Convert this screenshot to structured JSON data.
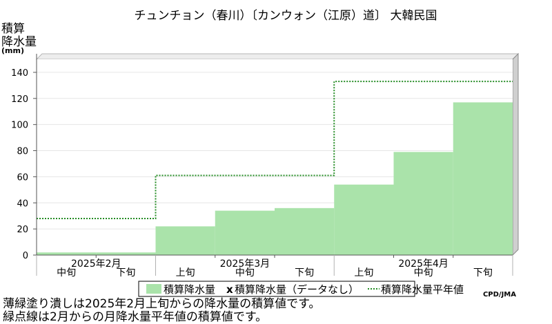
{
  "chart_data": {
    "type": "bar",
    "title": "チュンチョン（春川）〔カンウォン（江原）道〕 大韓民国",
    "ylabel_lines": [
      "積算",
      "降水量"
    ],
    "unit": "(mm)",
    "ylim": [
      0,
      150
    ],
    "yticks": [
      0,
      20,
      40,
      60,
      80,
      100,
      120,
      140
    ],
    "period_labels": [
      "中旬",
      "下旬",
      "上旬",
      "中旬",
      "下旬",
      "上旬",
      "中旬",
      "下旬"
    ],
    "month_labels": [
      {
        "label": "2025年2月",
        "span": [
          0,
          2
        ]
      },
      {
        "label": "2025年3月",
        "span": [
          2,
          5
        ]
      },
      {
        "label": "2025年4月",
        "span": [
          5,
          8
        ]
      }
    ],
    "series": [
      {
        "name": "積算降水量",
        "kind": "bar",
        "color": "#aae3aa",
        "values": [
          2,
          2,
          22,
          34,
          36,
          54,
          79,
          117
        ]
      },
      {
        "name": "積算降水量平年値",
        "kind": "step",
        "color": "#228b22",
        "values": [
          28,
          28,
          61,
          61,
          61,
          133,
          133,
          133
        ]
      }
    ],
    "missing_marker": "x",
    "missing_label": "積算降水量（データなし）",
    "credit": "CPD/JMA"
  },
  "notes": [
    "薄緑塗り潰しは2025年2月上旬からの降水量の積算値です。",
    "緑点線は2月からの月降水量平年値の積算値です。"
  ]
}
